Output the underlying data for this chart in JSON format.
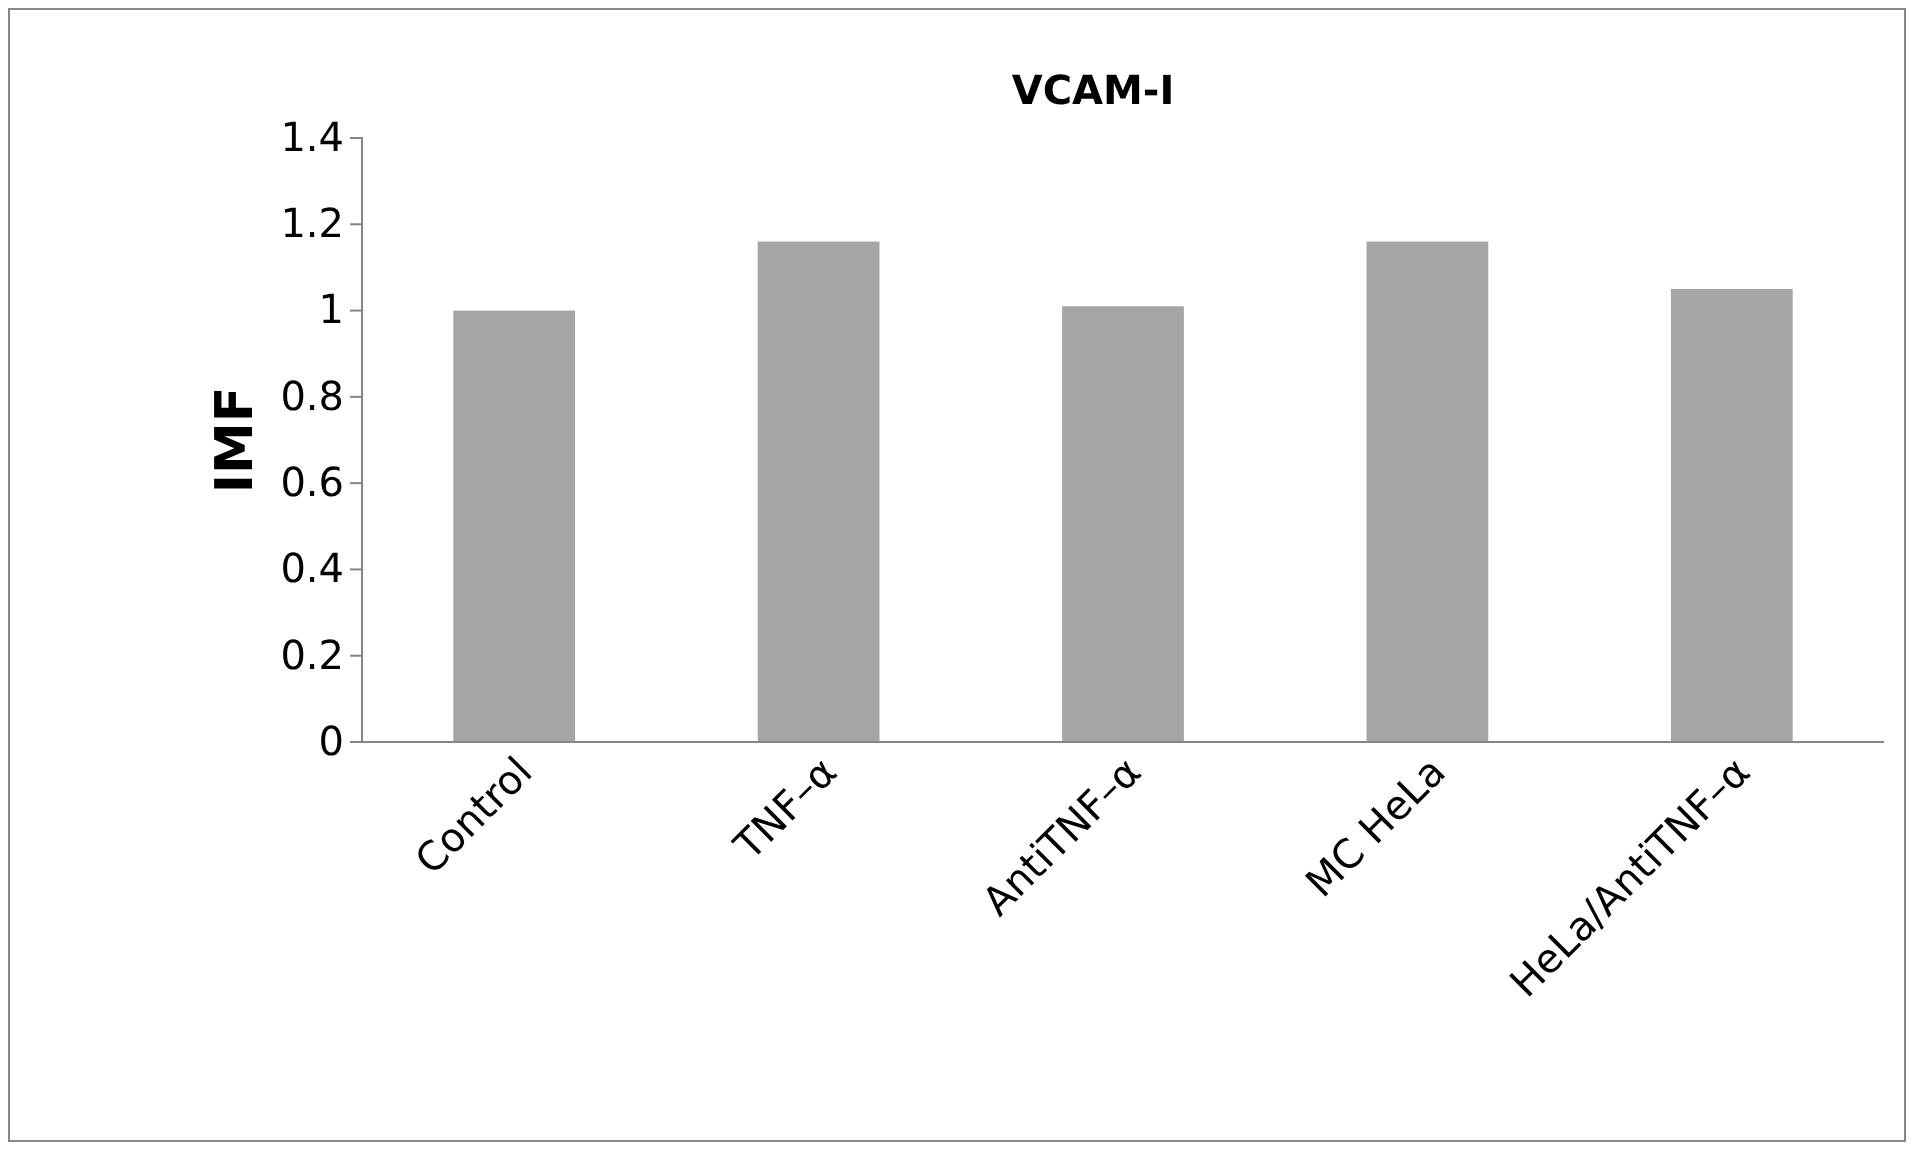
{
  "chart_data": {
    "type": "bar",
    "title": "VCAM-I",
    "ylabel": "IMF",
    "categories": [
      "Control",
      "TNF–α",
      "AntiTNF–α",
      "MC HeLa",
      "HeLa/AntiTNF–α"
    ],
    "values": [
      1.0,
      1.16,
      1.01,
      1.16,
      1.05
    ],
    "color": "#a5a5a5",
    "ylim": [
      0,
      1.4
    ],
    "yticks": [
      0,
      0.2,
      0.4,
      0.6,
      0.8,
      1,
      1.2,
      1.4
    ],
    "grid": false
  }
}
